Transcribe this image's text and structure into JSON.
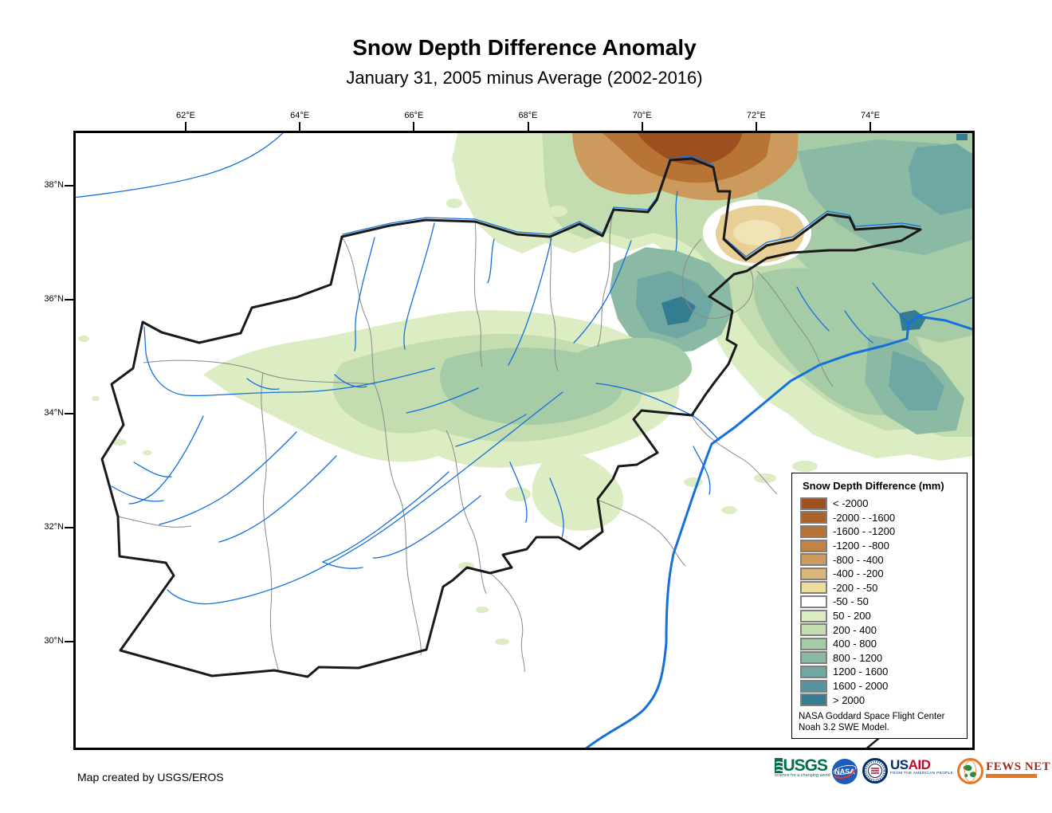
{
  "page": {
    "title": "Snow Depth Difference Anomaly",
    "subtitle": "January 31, 2005 minus Average (2002-2016)",
    "footer_credit": "Map created by USGS/EROS"
  },
  "map": {
    "top_axis_labels": [
      "62°E",
      "64°E",
      "66°E",
      "68°E",
      "70°E",
      "72°E",
      "74°E"
    ],
    "left_axis_labels": [
      "38°N",
      "36°N",
      "34°N",
      "32°N",
      "30°N"
    ],
    "feature_colors": {
      "country_border": "#1a1a1a",
      "admin_boundary": "#8a8a8a",
      "river": "#1470dc"
    }
  },
  "legend": {
    "title": "Snow Depth Difference (mm)",
    "items": [
      {
        "label": "< -2000",
        "color": "#9e4f20"
      },
      {
        "label": "-2000 - -1600",
        "color": "#ad6227"
      },
      {
        "label": "-1600 - -1200",
        "color": "#b87434"
      },
      {
        "label": "-1200 - -800",
        "color": "#c18445"
      },
      {
        "label": "-800 - -400",
        "color": "#cd9a5d"
      },
      {
        "label": "-400 - -200",
        "color": "#dcb678"
      },
      {
        "label": "-200 - -50",
        "color": "#ecdf9d"
      },
      {
        "label": "-50 - 50",
        "color": "#ffffff"
      },
      {
        "label": "50 - 200",
        "color": "#dcecc3"
      },
      {
        "label": "200 - 400",
        "color": "#c3dcb0"
      },
      {
        "label": "400 - 800",
        "color": "#a6cba7"
      },
      {
        "label": "800 - 1200",
        "color": "#8bbaa4"
      },
      {
        "label": "1200 - 1600",
        "color": "#6fa8a3"
      },
      {
        "label": "1600 - 2000",
        "color": "#57949e"
      },
      {
        "label": "> 2000",
        "color": "#347c90"
      }
    ],
    "credit_line1": "NASA Goddard Space Flight Center",
    "credit_line2": "Noah 3.2 SWE Model."
  },
  "logos": {
    "usgs": {
      "text": "USGS",
      "tagline": "science for a changing world",
      "color": "#007150"
    },
    "nasa": {
      "text": "NASA"
    },
    "usaid": {
      "text_us": "US",
      "text_aid": "AID",
      "tagline": "FROM THE AMERICAN PEOPLE"
    },
    "fewsnet": {
      "text": "FEWS NET"
    }
  }
}
